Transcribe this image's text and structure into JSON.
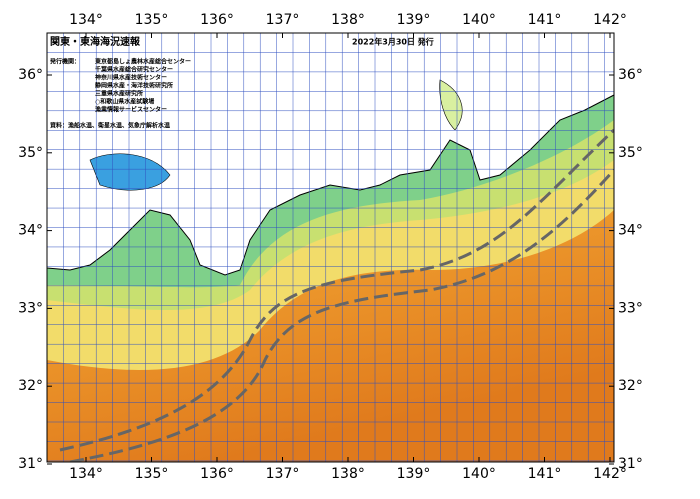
{
  "map": {
    "title": "関東・東海海況速報",
    "date": "2022年3月30日 発行",
    "issuer_label": "発行機関：",
    "issuers": [
      "東京都島しょ農林水産総合センター",
      "千葉県水産総合研究センター",
      "神奈川県水産技術センター",
      "静岡県水産・海洋技術研究所",
      "三重県水産研究所",
      "○和歌山県水産試験場",
      "漁業情報サービスセンター"
    ],
    "source": "資料：漁船水温、衛星水温、気象庁解析水温",
    "lon_ticks": [
      {
        "value": 134,
        "label": "134°"
      },
      {
        "value": 135,
        "label": "135°"
      },
      {
        "value": 136,
        "label": "136°"
      },
      {
        "value": 137,
        "label": "137°"
      },
      {
        "value": 138,
        "label": "138°"
      },
      {
        "value": 139,
        "label": "139°"
      },
      {
        "value": 140,
        "label": "140°"
      },
      {
        "value": 141,
        "label": "141°"
      },
      {
        "value": 142,
        "label": "142°"
      }
    ],
    "lat_ticks": [
      {
        "value": 36,
        "label": "36°"
      },
      {
        "value": 35,
        "label": "35°"
      },
      {
        "value": 34,
        "label": "34°"
      },
      {
        "value": 33,
        "label": "33°"
      },
      {
        "value": 32,
        "label": "32°"
      },
      {
        "value": 31,
        "label": "31°"
      }
    ]
  }
}
